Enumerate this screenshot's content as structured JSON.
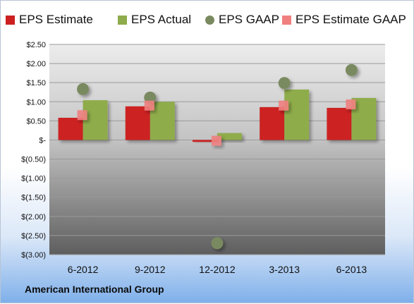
{
  "legend": {
    "items": [
      {
        "label": "EPS Estimate",
        "color": "#cc2020",
        "shape": "square"
      },
      {
        "label": "EPS Actual",
        "color": "#8fac4c",
        "shape": "square"
      },
      {
        "label": "EPS GAAP",
        "color": "#7a8a60",
        "shape": "circle"
      },
      {
        "label": "EPS Estimate GAAP",
        "color": "#f08080",
        "shape": "square"
      }
    ]
  },
  "footer": {
    "company": "American International Group"
  },
  "chart_data": {
    "type": "bar",
    "categories": [
      "6-2012",
      "9-2012",
      "12-2012",
      "3-2013",
      "6-2013"
    ],
    "series": [
      {
        "name": "EPS Estimate",
        "kind": "bar",
        "color": "#cc2020",
        "values": [
          0.58,
          0.88,
          -0.05,
          0.86,
          0.84
        ]
      },
      {
        "name": "EPS Actual",
        "kind": "bar",
        "color": "#8fac4c",
        "values": [
          1.04,
          1.0,
          0.18,
          1.32,
          1.1
        ]
      },
      {
        "name": "EPS GAAP",
        "kind": "circle",
        "color": "#7a8a60",
        "values": [
          1.33,
          1.11,
          -2.7,
          1.49,
          1.83
        ]
      },
      {
        "name": "EPS Estimate GAAP",
        "kind": "square",
        "color": "#f08080",
        "values": [
          0.65,
          0.9,
          -0.02,
          0.9,
          0.93
        ]
      }
    ],
    "ylim": [
      -3.0,
      2.5
    ],
    "yticks": [
      2.5,
      2.0,
      1.5,
      1.0,
      0.5,
      0,
      -0.5,
      -1.0,
      -1.5,
      -2.0,
      -2.5,
      -3.0
    ],
    "ytick_labels": [
      "$2.50",
      "$2.00",
      "$1.50",
      "$1.00",
      "$0.50",
      "$-",
      "$(0.50)",
      "$(1.00)",
      "$(1.50)",
      "$(2.00)",
      "$(2.50)",
      "$(3.00)"
    ],
    "grid": true,
    "legend_position": "top"
  }
}
